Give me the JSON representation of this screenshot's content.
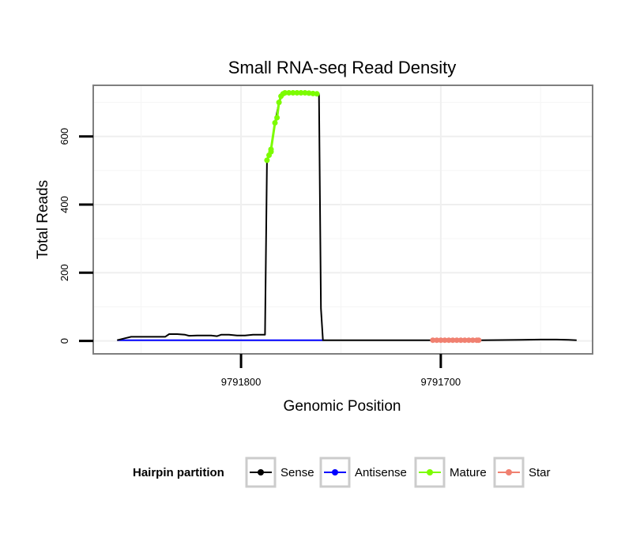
{
  "chart_data": {
    "type": "line",
    "title": "Small RNA-seq Read Density",
    "xlabel": "Genomic Position",
    "ylabel": "Total Reads",
    "x_reversed": true,
    "xlim": [
      9791874,
      9791624
    ],
    "ylim": [
      -38,
      750
    ],
    "x_ticks": [
      9791800,
      9791700
    ],
    "x_tick_labels": [
      "9791800",
      "9791700"
    ],
    "y_ticks": [
      0,
      200,
      400,
      600
    ],
    "y_tick_labels": [
      "0",
      "200",
      "400",
      "600"
    ],
    "grid": true,
    "legend": {
      "title": "Hairpin partition",
      "position": "bottom",
      "entries": [
        {
          "name": "Sense",
          "color": "#000000"
        },
        {
          "name": "Antisense",
          "color": "#0000ff"
        },
        {
          "name": "Mature",
          "color": "#7cfc00"
        },
        {
          "name": "Star",
          "color": "#f08070"
        }
      ]
    },
    "series": [
      {
        "name": "Sense",
        "color": "#000000",
        "points": [
          [
            9791862,
            2
          ],
          [
            9791858,
            8
          ],
          [
            9791855,
            12
          ],
          [
            9791850,
            12
          ],
          [
            9791845,
            12
          ],
          [
            9791838,
            12
          ],
          [
            9791836,
            20
          ],
          [
            9791832,
            20
          ],
          [
            9791828,
            18
          ],
          [
            9791826,
            15
          ],
          [
            9791822,
            16
          ],
          [
            9791818,
            16
          ],
          [
            9791815,
            16
          ],
          [
            9791812,
            14
          ],
          [
            9791810,
            18
          ],
          [
            9791806,
            18
          ],
          [
            9791802,
            16
          ],
          [
            9791798,
            16
          ],
          [
            9791794,
            18
          ],
          [
            9791790,
            18
          ],
          [
            9791788,
            18
          ],
          [
            9791787,
            530
          ],
          [
            9791786,
            545
          ],
          [
            9791785,
            560
          ],
          [
            9791783,
            640
          ],
          [
            9791781,
            700
          ],
          [
            9791779,
            725
          ],
          [
            9791776,
            728
          ],
          [
            9791770,
            728
          ],
          [
            9791765,
            727
          ],
          [
            9791761,
            725
          ],
          [
            9791760,
            95
          ],
          [
            9791759,
            2
          ],
          [
            9791740,
            2
          ],
          [
            9791720,
            2
          ],
          [
            9791700,
            2
          ],
          [
            9791680,
            2
          ],
          [
            9791660,
            3
          ],
          [
            9791650,
            4
          ],
          [
            9791642,
            4
          ],
          [
            9791636,
            3
          ],
          [
            9791632,
            2
          ]
        ]
      },
      {
        "name": "Antisense",
        "color": "#0000ff",
        "points": [
          [
            9791862,
            2
          ],
          [
            9791759,
            2
          ]
        ]
      },
      {
        "name": "Mature",
        "color": "#7cfc00",
        "points": [
          [
            9791787,
            530
          ],
          [
            9791786,
            545
          ],
          [
            9791785,
            555
          ],
          [
            9791785,
            562
          ],
          [
            9791783,
            640
          ],
          [
            9791782,
            655
          ],
          [
            9791781,
            700
          ],
          [
            9791780,
            718
          ],
          [
            9791779,
            725
          ],
          [
            9791778,
            728
          ],
          [
            9791776,
            728
          ],
          [
            9791774,
            728
          ],
          [
            9791772,
            728
          ],
          [
            9791770,
            728
          ],
          [
            9791768,
            728
          ],
          [
            9791766,
            727
          ],
          [
            9791764,
            726
          ],
          [
            9791762,
            725
          ]
        ]
      },
      {
        "name": "Star",
        "color": "#f08070",
        "points": [
          [
            9791704,
            2
          ],
          [
            9791702,
            2
          ],
          [
            9791700,
            2
          ],
          [
            9791698,
            2
          ],
          [
            9791696,
            2
          ],
          [
            9791694,
            2
          ],
          [
            9791692,
            2
          ],
          [
            9791690,
            2
          ],
          [
            9791688,
            2
          ],
          [
            9791686,
            2
          ],
          [
            9791684,
            2
          ],
          [
            9791682,
            2
          ],
          [
            9791681,
            2
          ]
        ]
      }
    ]
  }
}
